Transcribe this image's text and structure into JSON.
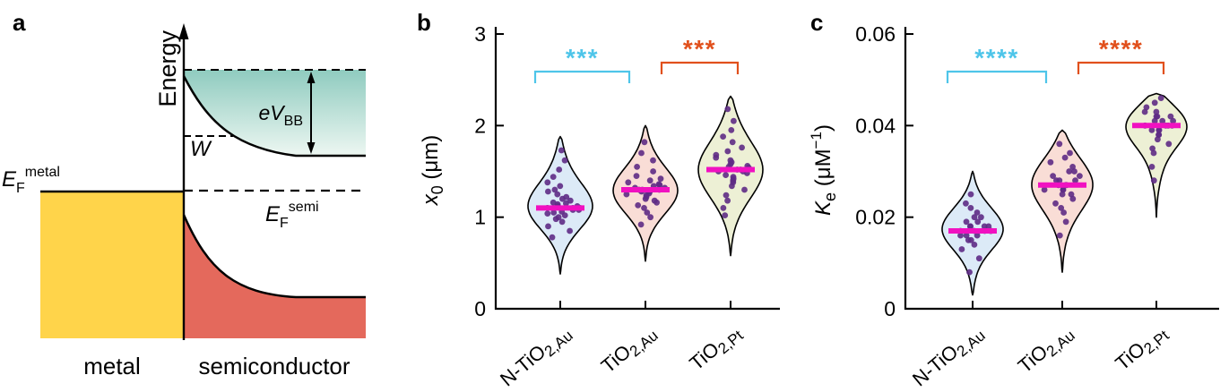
{
  "panel_a": {
    "label": "a",
    "energy_axis_label": "Energy",
    "ef_metal": {
      "base": "E",
      "sub": "F",
      "sup": "metal"
    },
    "ef_semi": {
      "base": "E",
      "sub": "F",
      "sup": "semi"
    },
    "evbb": {
      "base": "eV",
      "sub": "BB"
    },
    "depletion_label": "W",
    "metal_label": "metal",
    "semiconductor_label": "semiconductor",
    "colors": {
      "metal_fill": "#FFD44A",
      "semiconductor_fill": "#E4695C",
      "band_gradient_top": "#8FCBBF",
      "band_gradient_bottom": "#EDF7F2"
    }
  },
  "shared_colors": {
    "median_line": "#F111C1",
    "data_points": "#5E2B85",
    "axis": "#000000"
  },
  "chart_data": [
    {
      "type": "violin",
      "panel_label": "b",
      "ylabel": {
        "var": "x",
        "sub": "0",
        "unit": " (μm)"
      },
      "ylim": [
        0,
        3
      ],
      "yticks": [
        0,
        1,
        2,
        3
      ],
      "ytick_labels": [
        "0",
        "1",
        "2",
        "3"
      ],
      "categories": [
        {
          "main": "N-TiO",
          "sub": "2,Au"
        },
        {
          "main": "TiO",
          "sub": "2,Au"
        },
        {
          "main": "TiO",
          "sub": "2,Pt"
        }
      ],
      "violin_fills": [
        "#DCEAF7",
        "#F9DDD6",
        "#EDF0D5"
      ],
      "medians": [
        1.1,
        1.3,
        1.52
      ],
      "ranges": [
        [
          0.38,
          1.88
        ],
        [
          0.52,
          2.0
        ],
        [
          0.58,
          2.32
        ]
      ],
      "points": [
        [
          0.78,
          0.85,
          0.9,
          0.95,
          0.98,
          1.0,
          1.02,
          1.04,
          1.05,
          1.06,
          1.08,
          1.08,
          1.1,
          1.1,
          1.1,
          1.12,
          1.12,
          1.14,
          1.15,
          1.16,
          1.18,
          1.2,
          1.22,
          1.25,
          1.28,
          1.3,
          1.34,
          1.38,
          1.44,
          1.52,
          1.62,
          1.73
        ],
        [
          0.92,
          1.0,
          1.05,
          1.1,
          1.13,
          1.16,
          1.18,
          1.2,
          1.22,
          1.24,
          1.25,
          1.26,
          1.28,
          1.28,
          1.3,
          1.3,
          1.3,
          1.32,
          1.32,
          1.34,
          1.35,
          1.36,
          1.38,
          1.4,
          1.42,
          1.45,
          1.5,
          1.55,
          1.62,
          1.7,
          1.82
        ],
        [
          1.02,
          1.1,
          1.18,
          1.24,
          1.3,
          1.34,
          1.38,
          1.4,
          1.42,
          1.44,
          1.46,
          1.48,
          1.5,
          1.5,
          1.52,
          1.52,
          1.54,
          1.55,
          1.56,
          1.58,
          1.6,
          1.62,
          1.65,
          1.68,
          1.72,
          1.76,
          1.82,
          1.88,
          1.95,
          2.05,
          2.18
        ]
      ],
      "significance": [
        {
          "pair": [
            0,
            1
          ],
          "label": "***",
          "color": "#4EC5E9"
        },
        {
          "pair": [
            1,
            2
          ],
          "label": "***",
          "color": "#E1501C"
        }
      ]
    },
    {
      "type": "violin",
      "panel_label": "c",
      "ylabel": {
        "var": "K",
        "sub": "e",
        "unit_pre": " (μM",
        "sup": "−1",
        "unit_post": ")"
      },
      "ylim": [
        0,
        0.06
      ],
      "yticks": [
        0,
        0.02,
        0.04,
        0.06
      ],
      "ytick_labels": [
        "0",
        "0.02",
        "0.04",
        "0.06"
      ],
      "categories": [
        {
          "main": "N-TiO",
          "sub": "2,Au"
        },
        {
          "main": "TiO",
          "sub": "2,Au"
        },
        {
          "main": "TiO",
          "sub": "2,Pt"
        }
      ],
      "violin_fills": [
        "#DCEAF7",
        "#F9DDD6",
        "#EDF0D5"
      ],
      "medians": [
        0.017,
        0.027,
        0.04
      ],
      "ranges": [
        [
          0.003,
          0.03
        ],
        [
          0.008,
          0.039
        ],
        [
          0.02,
          0.047
        ]
      ],
      "points": [
        [
          0.008,
          0.011,
          0.013,
          0.014,
          0.015,
          0.015,
          0.016,
          0.016,
          0.016,
          0.017,
          0.017,
          0.017,
          0.017,
          0.017,
          0.018,
          0.018,
          0.018,
          0.018,
          0.019,
          0.019,
          0.02,
          0.02,
          0.021,
          0.022,
          0.023,
          0.025
        ],
        [
          0.016,
          0.019,
          0.021,
          0.022,
          0.023,
          0.024,
          0.025,
          0.025,
          0.026,
          0.026,
          0.026,
          0.027,
          0.027,
          0.027,
          0.028,
          0.028,
          0.028,
          0.029,
          0.029,
          0.03,
          0.03,
          0.031,
          0.032,
          0.033,
          0.034,
          0.036
        ],
        [
          0.028,
          0.031,
          0.034,
          0.035,
          0.036,
          0.037,
          0.038,
          0.038,
          0.039,
          0.039,
          0.039,
          0.04,
          0.04,
          0.04,
          0.04,
          0.041,
          0.041,
          0.041,
          0.042,
          0.042,
          0.042,
          0.043,
          0.043,
          0.044,
          0.045,
          0.046
        ]
      ],
      "significance": [
        {
          "pair": [
            0,
            1
          ],
          "label": "****",
          "color": "#4EC5E9"
        },
        {
          "pair": [
            1,
            2
          ],
          "label": "****",
          "color": "#E1501C"
        }
      ]
    }
  ]
}
